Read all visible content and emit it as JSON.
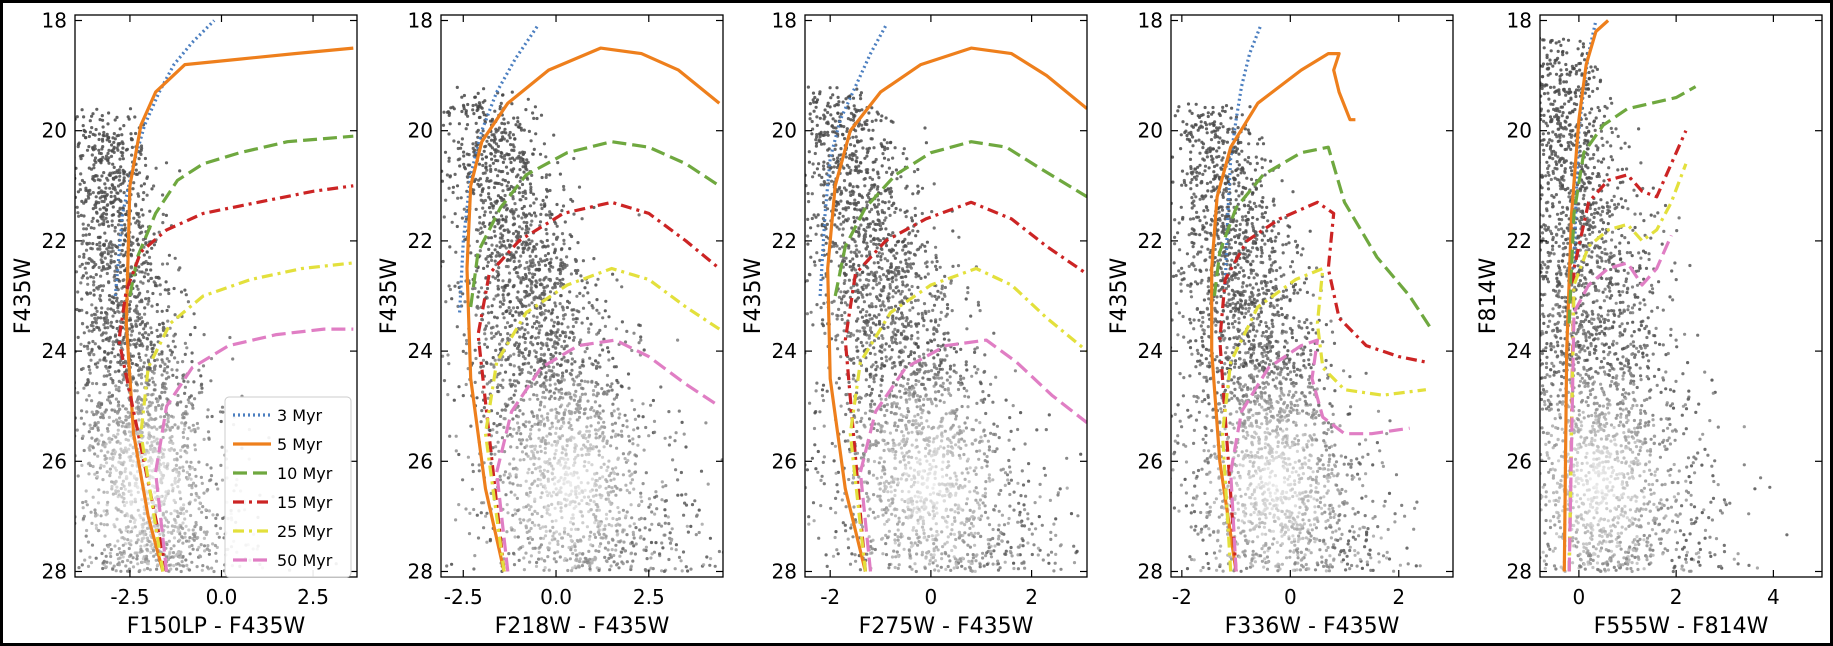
{
  "chart_data": [
    {
      "type": "scatter",
      "xlabel": "F150LP - F435W",
      "ylabel": "F435W",
      "xlim": [
        -4.0,
        3.7
      ],
      "ylim": [
        28.1,
        17.9
      ],
      "xticks": [
        -2.5,
        0.0,
        2.5
      ],
      "yticks": [
        18,
        20,
        22,
        24,
        26,
        28
      ],
      "legend": "lower-right",
      "points": {
        "seed": 11,
        "n": 2400,
        "x_center": [
          -3.4,
          -0.2
        ],
        "y_range": [
          19.6,
          28.0
        ],
        "spread": 1.3
      },
      "series": [
        {
          "name": "3 Myr",
          "color": "#4c7fc0",
          "style": "dotted",
          "x": [
            -2.9,
            -2.7,
            -2.4,
            -2.1,
            -1.7,
            -1.3,
            -0.8,
            -0.2
          ],
          "y": [
            23.0,
            21.5,
            20.6,
            19.9,
            19.3,
            18.8,
            18.4,
            18.0
          ]
        },
        {
          "name": "5 Myr",
          "color": "#ee7f1c",
          "style": "solid",
          "x": [
            -1.6,
            -2.0,
            -2.4,
            -2.6,
            -2.5,
            -2.2,
            -1.8,
            -1.0,
            0.5,
            2.0,
            3.6
          ],
          "y": [
            28.0,
            27.0,
            25.5,
            23.5,
            21.0,
            19.9,
            19.3,
            18.8,
            18.7,
            18.6,
            18.5
          ]
        },
        {
          "name": "10 Myr",
          "color": "#6fa83f",
          "style": "longdash",
          "x": [
            -2.5,
            -2.3,
            -1.8,
            -1.2,
            -0.5,
            0.5,
            1.8,
            3.6
          ],
          "y": [
            23.0,
            22.3,
            21.5,
            20.9,
            20.6,
            20.4,
            20.2,
            20.1
          ]
        },
        {
          "name": "15 Myr",
          "color": "#cc2424",
          "style": "dashdot",
          "x": [
            -1.5,
            -2.8,
            -2.6,
            -2.2,
            -1.5,
            -0.5,
            1.0,
            2.5,
            3.6
          ],
          "y": [
            28.0,
            23.8,
            22.9,
            22.2,
            21.8,
            21.5,
            21.3,
            21.1,
            21.0
          ]
        },
        {
          "name": "25 Myr",
          "color": "#e3e03c",
          "style": "dashdot",
          "x": [
            -1.6,
            -2.2,
            -2.0,
            -1.4,
            -0.5,
            0.8,
            2.2,
            3.6
          ],
          "y": [
            28.0,
            25.5,
            24.3,
            23.5,
            23.0,
            22.7,
            22.5,
            22.4
          ]
        },
        {
          "name": "50 Myr",
          "color": "#e07ec4",
          "style": "longdash",
          "x": [
            -1.5,
            -1.8,
            -1.5,
            -0.8,
            0.2,
            1.5,
            2.8,
            3.6
          ],
          "y": [
            28.0,
            26.2,
            25.0,
            24.3,
            23.9,
            23.7,
            23.6,
            23.6
          ]
        }
      ]
    },
    {
      "type": "scatter",
      "xlabel": "F218W - F435W",
      "ylabel": "F435W",
      "xlim": [
        -3.1,
        4.5
      ],
      "ylim": [
        28.1,
        17.9
      ],
      "xticks": [
        -2.5,
        0.0,
        2.5
      ],
      "yticks": [
        18,
        20,
        22,
        24,
        26,
        28
      ],
      "points": {
        "seed": 23,
        "n": 2600,
        "x_center": [
          -2.0,
          3.4
        ],
        "y_range": [
          19.2,
          28.0
        ],
        "spread": 1.6
      },
      "series": [
        {
          "name": "3 Myr",
          "color": "#4c7fc0",
          "style": "dotted",
          "x": [
            -2.6,
            -2.5,
            -2.3,
            -2.0,
            -1.6,
            -1.1,
            -0.5
          ],
          "y": [
            23.3,
            22.0,
            20.8,
            20.0,
            19.3,
            18.7,
            18.1
          ]
        },
        {
          "name": "5 Myr",
          "color": "#ee7f1c",
          "style": "solid",
          "x": [
            -1.4,
            -1.9,
            -2.3,
            -2.4,
            -2.3,
            -2.0,
            -1.3,
            -0.2,
            1.2,
            2.3,
            3.3,
            4.4
          ],
          "y": [
            28.0,
            26.5,
            24.5,
            22.5,
            21.0,
            20.2,
            19.5,
            18.9,
            18.5,
            18.6,
            18.9,
            19.5
          ]
        },
        {
          "name": "10 Myr",
          "color": "#6fa83f",
          "style": "longdash",
          "x": [
            -2.3,
            -2.1,
            -1.5,
            -0.8,
            0.3,
            1.5,
            2.5,
            3.5,
            4.4
          ],
          "y": [
            23.2,
            22.2,
            21.4,
            20.8,
            20.4,
            20.2,
            20.3,
            20.6,
            21.0
          ]
        },
        {
          "name": "15 Myr",
          "color": "#cc2424",
          "style": "dashdot",
          "x": [
            -1.4,
            -2.1,
            -1.8,
            -1.0,
            0.2,
            1.5,
            2.5,
            3.5,
            4.4
          ],
          "y": [
            28.0,
            23.7,
            22.6,
            22.0,
            21.5,
            21.3,
            21.5,
            22.0,
            22.5
          ]
        },
        {
          "name": "25 Myr",
          "color": "#e3e03c",
          "style": "dashdot",
          "x": [
            -1.4,
            -1.9,
            -1.6,
            -0.8,
            0.3,
            1.5,
            2.5,
            3.5,
            4.4
          ],
          "y": [
            28.0,
            25.5,
            24.2,
            23.3,
            22.8,
            22.5,
            22.7,
            23.2,
            23.6
          ]
        },
        {
          "name": "50 Myr",
          "color": "#e07ec4",
          "style": "longdash",
          "x": [
            -1.3,
            -1.6,
            -1.2,
            -0.4,
            0.6,
            1.6,
            2.5,
            3.5,
            4.4
          ],
          "y": [
            28.0,
            26.2,
            25.1,
            24.3,
            23.9,
            23.8,
            24.1,
            24.6,
            25.0
          ]
        }
      ]
    },
    {
      "type": "scatter",
      "xlabel": "F275W - F435W",
      "ylabel": "F435W",
      "xlim": [
        -2.5,
        3.1
      ],
      "ylim": [
        28.1,
        17.9
      ],
      "xticks": [
        -2,
        0,
        2
      ],
      "yticks": [
        18,
        20,
        22,
        24,
        26,
        28
      ],
      "points": {
        "seed": 37,
        "n": 2600,
        "x_center": [
          -1.9,
          2.3
        ],
        "y_range": [
          19.2,
          28.0
        ],
        "spread": 1.2
      },
      "series": [
        {
          "name": "3 Myr",
          "color": "#4c7fc0",
          "style": "dotted",
          "x": [
            -2.2,
            -2.1,
            -2.0,
            -1.8,
            -1.5,
            -1.2,
            -0.9
          ],
          "y": [
            23.0,
            21.5,
            20.5,
            19.8,
            19.2,
            18.6,
            18.1
          ]
        },
        {
          "name": "5 Myr",
          "color": "#ee7f1c",
          "style": "solid",
          "x": [
            -1.3,
            -1.7,
            -2.0,
            -2.05,
            -1.9,
            -1.6,
            -1.0,
            -0.2,
            0.8,
            1.6,
            2.3,
            3.1
          ],
          "y": [
            28.0,
            26.5,
            24.5,
            22.5,
            21.0,
            20.0,
            19.3,
            18.8,
            18.5,
            18.6,
            19.0,
            19.6
          ]
        },
        {
          "name": "10 Myr",
          "color": "#6fa83f",
          "style": "longdash",
          "x": [
            -1.9,
            -1.7,
            -1.3,
            -0.7,
            0.0,
            0.8,
            1.5,
            2.2,
            3.1
          ],
          "y": [
            23.0,
            22.1,
            21.4,
            20.8,
            20.4,
            20.2,
            20.3,
            20.7,
            21.2
          ]
        },
        {
          "name": "15 Myr",
          "color": "#cc2424",
          "style": "dashdot",
          "x": [
            -1.3,
            -1.7,
            -1.5,
            -0.9,
            -0.1,
            0.8,
            1.6,
            2.3,
            3.1
          ],
          "y": [
            28.0,
            23.8,
            22.6,
            22.0,
            21.6,
            21.3,
            21.6,
            22.1,
            22.6
          ]
        },
        {
          "name": "25 Myr",
          "color": "#e3e03c",
          "style": "dashdot",
          "x": [
            -1.3,
            -1.6,
            -1.4,
            -0.8,
            0.0,
            0.9,
            1.6,
            2.3,
            3.1
          ],
          "y": [
            28.0,
            25.5,
            24.2,
            23.3,
            22.8,
            22.5,
            22.8,
            23.4,
            24.0
          ]
        },
        {
          "name": "50 Myr",
          "color": "#e07ec4",
          "style": "longdash",
          "x": [
            -1.2,
            -1.4,
            -1.1,
            -0.5,
            0.3,
            1.1,
            1.7,
            2.4,
            3.1
          ],
          "y": [
            28.0,
            26.2,
            25.1,
            24.3,
            23.9,
            23.8,
            24.2,
            24.8,
            25.3
          ]
        }
      ]
    },
    {
      "type": "scatter",
      "xlabel": "F336W - F435W",
      "ylabel": "F435W",
      "xlim": [
        -2.2,
        3.0
      ],
      "ylim": [
        28.1,
        17.9
      ],
      "xticks": [
        -2,
        0,
        2
      ],
      "yticks": [
        18,
        20,
        22,
        24,
        26,
        28
      ],
      "points": {
        "seed": 53,
        "n": 2600,
        "x_center": [
          -1.5,
          1.3
        ],
        "y_range": [
          19.5,
          28.0
        ],
        "spread": 1.0
      },
      "series": [
        {
          "name": "3 Myr",
          "color": "#4c7fc0",
          "style": "dotted",
          "x": [
            -1.2,
            -1.15,
            -1.1,
            -1.0,
            -0.9,
            -0.75,
            -0.55
          ],
          "y": [
            22.8,
            21.5,
            20.5,
            19.8,
            19.2,
            18.6,
            18.1
          ]
        },
        {
          "name": "5 Myr",
          "color": "#ee7f1c",
          "style": "solid",
          "x": [
            -1.0,
            -1.3,
            -1.45,
            -1.45,
            -1.35,
            -1.1,
            -0.6,
            0.2,
            0.7,
            0.9,
            0.8,
            0.9,
            1.1,
            1.2
          ],
          "y": [
            28.0,
            26.0,
            24.0,
            22.5,
            21.2,
            20.3,
            19.5,
            18.9,
            18.6,
            18.6,
            18.9,
            19.3,
            19.8,
            19.8
          ]
        },
        {
          "name": "10 Myr",
          "color": "#6fa83f",
          "style": "longdash",
          "x": [
            -1.4,
            -1.3,
            -1.0,
            -0.5,
            0.2,
            0.7,
            1.0,
            1.6,
            2.2,
            2.6
          ],
          "y": [
            23.0,
            22.2,
            21.4,
            20.8,
            20.4,
            20.3,
            21.3,
            22.3,
            23.0,
            23.6
          ]
        },
        {
          "name": "15 Myr",
          "color": "#cc2424",
          "style": "dashdot",
          "x": [
            -1.0,
            -1.3,
            -1.2,
            -0.8,
            -0.2,
            0.5,
            0.8,
            0.7,
            0.9,
            1.4,
            2.0,
            2.5
          ],
          "y": [
            28.0,
            23.8,
            22.7,
            22.0,
            21.6,
            21.3,
            21.5,
            22.5,
            23.4,
            23.9,
            24.1,
            24.2
          ]
        },
        {
          "name": "25 Myr",
          "color": "#e3e03c",
          "style": "dashdot",
          "x": [
            -1.1,
            -1.25,
            -1.1,
            -0.6,
            0.1,
            0.6,
            0.5,
            0.6,
            1.0,
            1.7,
            2.5
          ],
          "y": [
            28.0,
            25.5,
            24.2,
            23.2,
            22.7,
            22.5,
            23.5,
            24.3,
            24.7,
            24.8,
            24.7
          ]
        },
        {
          "name": "50 Myr",
          "color": "#e07ec4",
          "style": "longdash",
          "x": [
            -1.0,
            -1.1,
            -0.9,
            -0.4,
            0.2,
            0.5,
            0.4,
            0.6,
            1.0,
            1.5,
            2.2
          ],
          "y": [
            28.0,
            26.2,
            25.1,
            24.3,
            23.9,
            23.8,
            24.5,
            25.2,
            25.5,
            25.5,
            25.4
          ]
        }
      ]
    },
    {
      "type": "scatter",
      "xlabel": "F555W - F814W",
      "ylabel": "F814W",
      "xlim": [
        -0.8,
        5.0
      ],
      "ylim": [
        28.1,
        17.9
      ],
      "xticks": [
        0,
        2,
        4
      ],
      "yticks": [
        18,
        20,
        22,
        24,
        26,
        28
      ],
      "points": {
        "seed": 71,
        "n": 2800,
        "x_center": [
          -0.5,
          1.8
        ],
        "y_range": [
          18.3,
          28.0
        ],
        "spread": 1.2
      },
      "series": [
        {
          "name": "3 Myr",
          "color": "#4c7fc0",
          "style": "dotted",
          "x": [
            -0.1,
            -0.05,
            0.0,
            0.1,
            0.2,
            0.35
          ],
          "y": [
            22.5,
            21.0,
            20.0,
            19.2,
            18.6,
            18.0
          ]
        },
        {
          "name": "5 Myr",
          "color": "#ee7f1c",
          "style": "solid",
          "x": [
            -0.3,
            -0.25,
            -0.15,
            0.0,
            0.15,
            0.35,
            0.6
          ],
          "y": [
            28.0,
            24.0,
            21.5,
            19.8,
            18.8,
            18.2,
            18.0
          ]
        },
        {
          "name": "10 Myr",
          "color": "#6fa83f",
          "style": "longdash",
          "x": [
            -0.2,
            -0.1,
            0.1,
            0.5,
            1.0,
            1.5,
            2.0,
            2.4
          ],
          "y": [
            23.5,
            21.5,
            20.4,
            19.9,
            19.6,
            19.5,
            19.4,
            19.2
          ]
        },
        {
          "name": "15 Myr",
          "color": "#cc2424",
          "style": "dashdot",
          "x": [
            -0.2,
            -0.1,
            0.2,
            0.6,
            1.0,
            1.3,
            1.6,
            1.9,
            2.2
          ],
          "y": [
            28.0,
            22.5,
            21.3,
            20.9,
            20.8,
            21.1,
            21.2,
            20.6,
            20.0
          ]
        },
        {
          "name": "25 Myr",
          "color": "#e3e03c",
          "style": "dashdot",
          "x": [
            -0.2,
            -0.1,
            0.2,
            0.6,
            1.0,
            1.3,
            1.6,
            1.9,
            2.2
          ],
          "y": [
            28.0,
            22.8,
            22.1,
            21.8,
            21.7,
            22.0,
            21.8,
            21.3,
            20.6
          ]
        },
        {
          "name": "50 Myr",
          "color": "#e07ec4",
          "style": "longdash",
          "x": [
            -0.2,
            -0.1,
            0.2,
            0.6,
            1.0,
            1.3,
            1.6,
            1.9
          ],
          "y": [
            28.0,
            23.3,
            22.8,
            22.5,
            22.4,
            22.8,
            22.5,
            21.9
          ]
        }
      ]
    }
  ]
}
